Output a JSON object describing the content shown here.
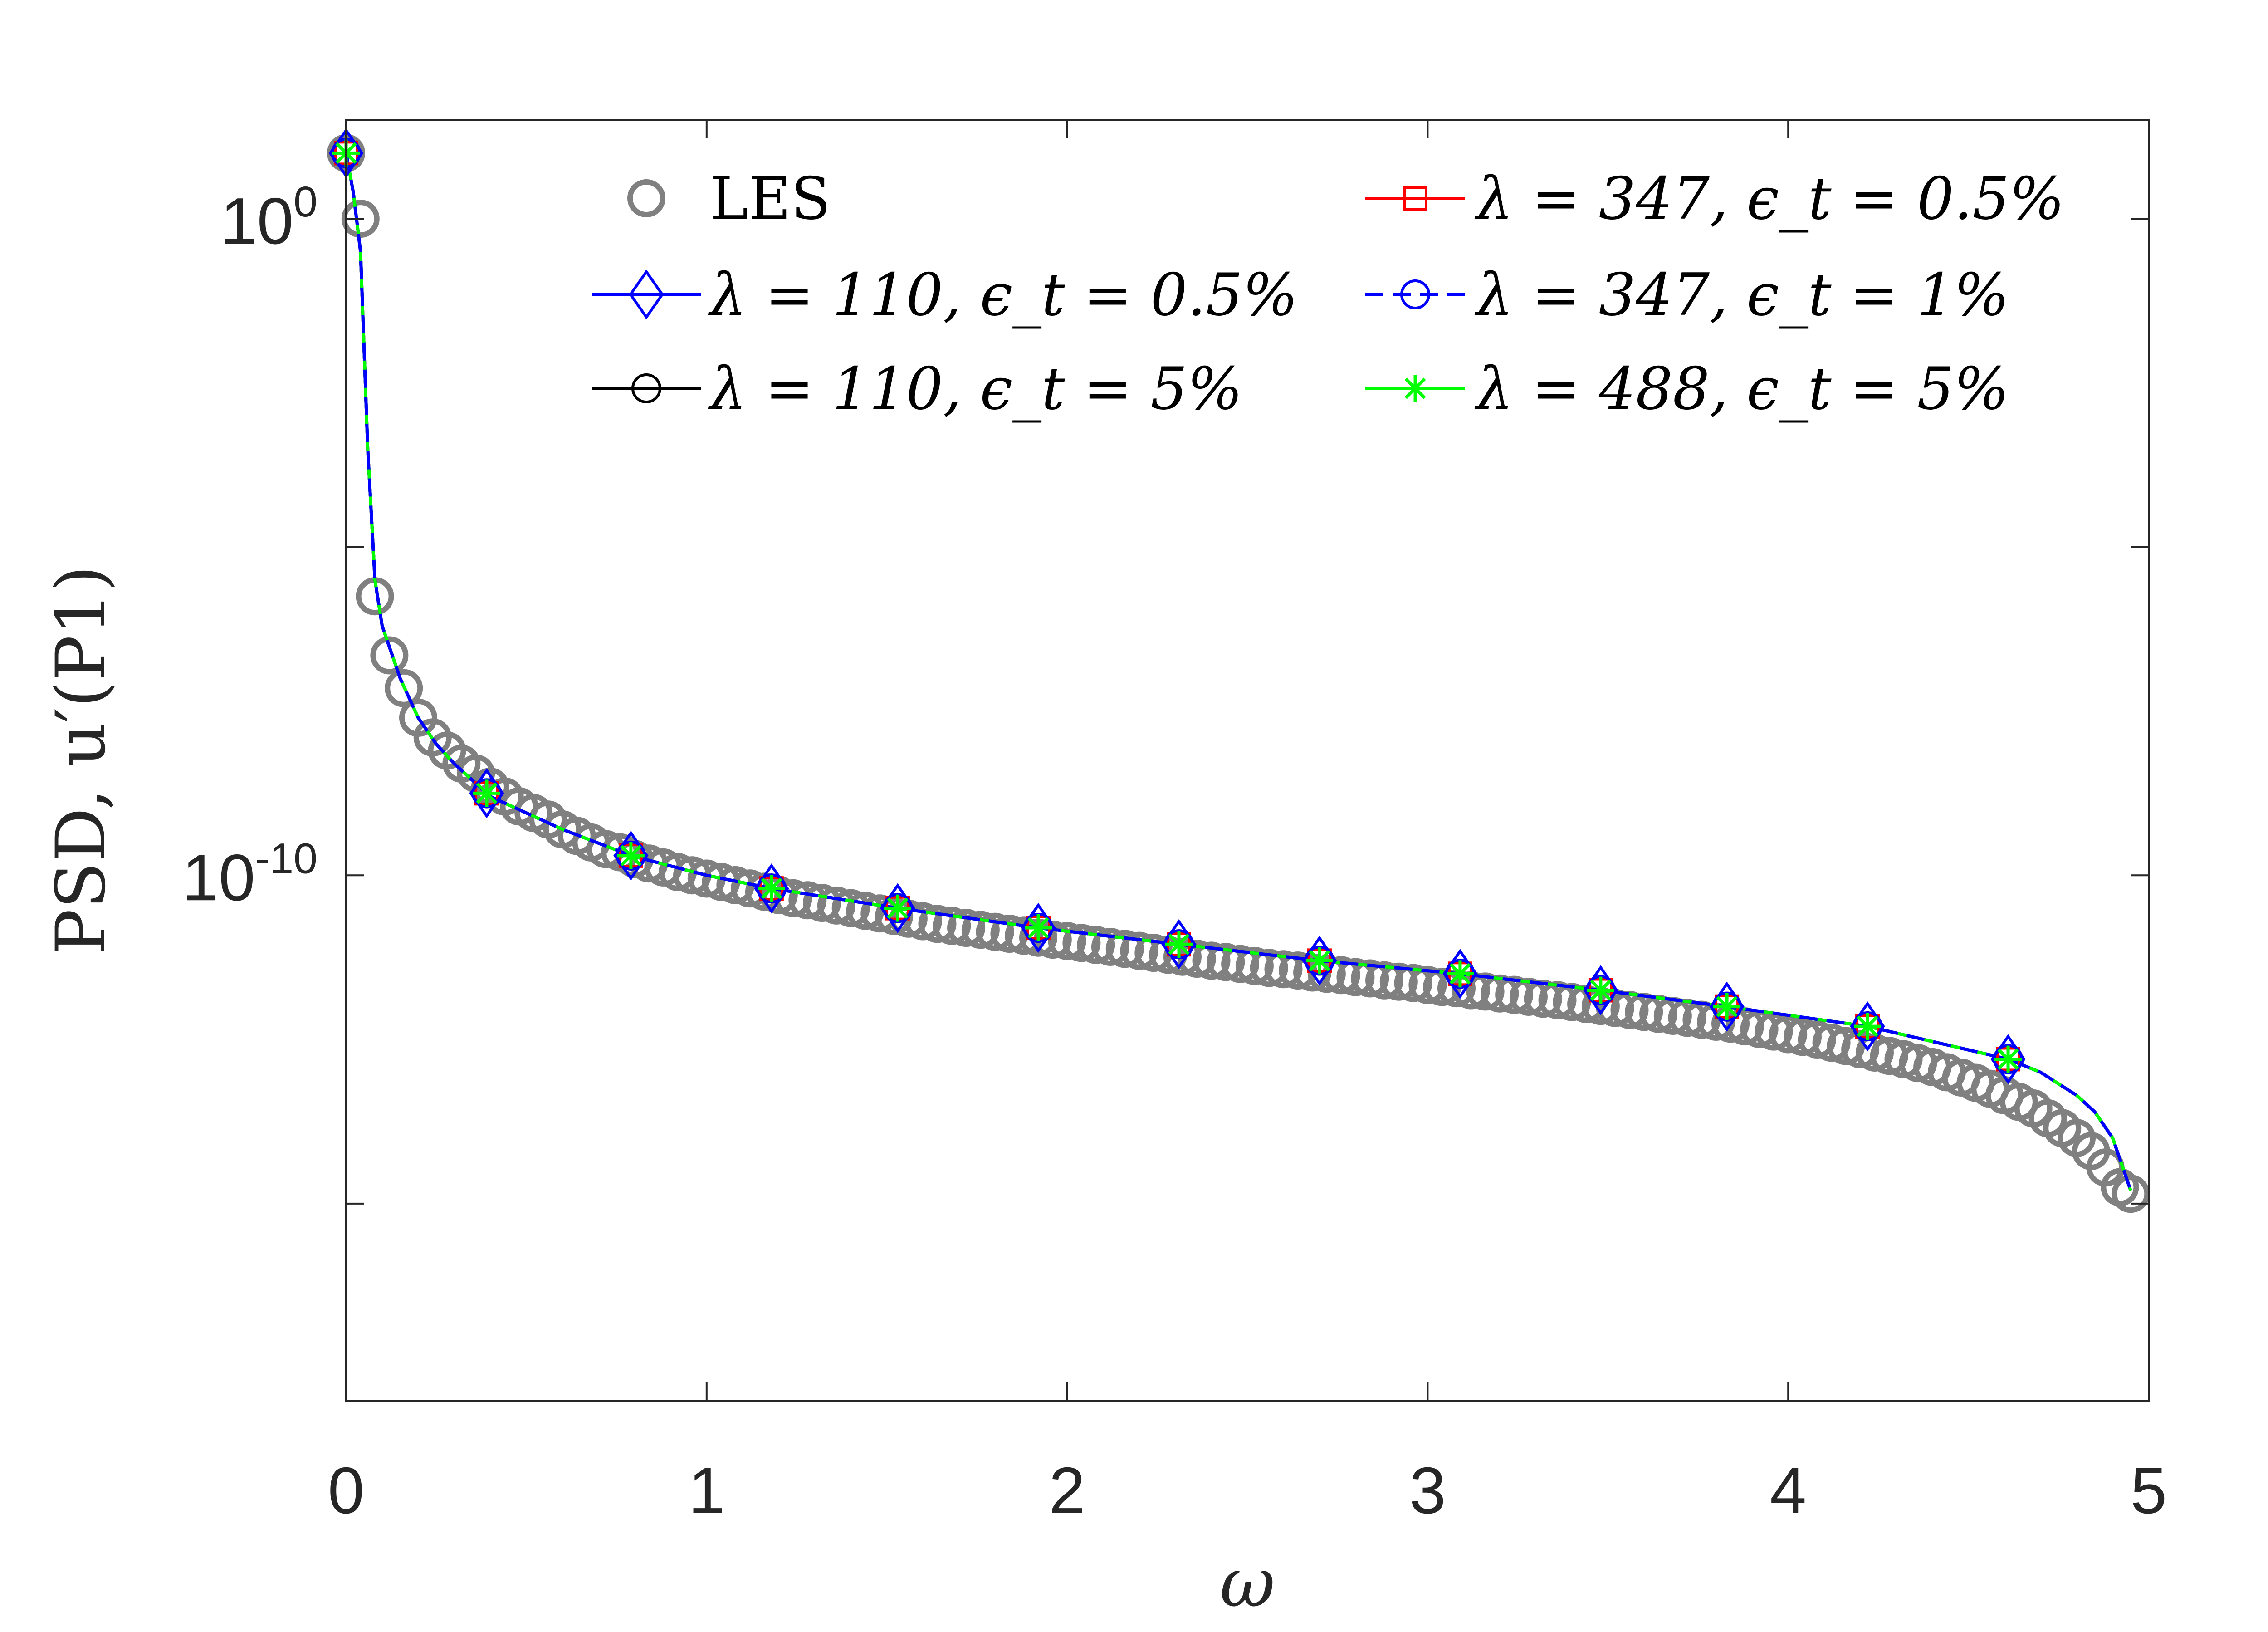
{
  "chart_data": {
    "type": "line",
    "xlabel": "ω",
    "ylabel": "PSD, u′(P1)",
    "xlim": [
      0,
      5
    ],
    "ylim_log10": [
      -18,
      1.5
    ],
    "y_scale": "log",
    "x_ticks": [
      "0",
      "1",
      "2",
      "3",
      "4",
      "5"
    ],
    "y_ticks": [
      {
        "base": "10",
        "exp": "0",
        "log10": 0
      },
      {
        "base": "10",
        "exp": "-10",
        "log10": -10
      }
    ],
    "grid": false,
    "legend": {
      "placement": "top",
      "columns": 2,
      "entries": [
        {
          "key": "les",
          "text": "LES"
        },
        {
          "key": "s110a",
          "text": "λ = 110,  ϵ_t = 0.5%"
        },
        {
          "key": "s110b",
          "text": "λ = 110,  ϵ_t = 5%"
        },
        {
          "key": "s347a",
          "text": "λ = 347,  ϵ_t = 0.5%"
        },
        {
          "key": "s347b",
          "text": "λ = 347,  ϵ_t = 1%"
        },
        {
          "key": "s488",
          "text": "λ = 488,  ϵ_t = 5%"
        }
      ]
    },
    "series": [
      {
        "key": "les",
        "name": "LES",
        "color": "#808080",
        "marker": "circle",
        "line": "none"
      },
      {
        "key": "s110a",
        "name": "λ = 110,  ϵ_t = 0.5%",
        "color": "#0000ff",
        "marker": "diamond",
        "line": "solid"
      },
      {
        "key": "s110b",
        "name": "λ = 110,  ϵ_t = 5%",
        "color": "#000000",
        "marker": "circle",
        "line": "solid"
      },
      {
        "key": "s347a",
        "name": "λ = 347,  ϵ_t = 0.5%",
        "color": "#ff0000",
        "marker": "square",
        "line": "solid"
      },
      {
        "key": "s347b",
        "name": "λ = 347,  ϵ_t = 1%",
        "color": "#0000ff",
        "marker": "circle",
        "line": "dashed"
      },
      {
        "key": "s488",
        "name": "λ = 488,  ϵ_t = 5%",
        "color": "#00ff00",
        "marker": "asterisk",
        "line": "solid"
      }
    ],
    "curve": {
      "x": [
        0,
        0.02,
        0.04,
        0.06,
        0.08,
        0.1,
        0.15,
        0.2,
        0.25,
        0.3,
        0.4,
        0.6,
        0.79,
        1.0,
        1.18,
        1.53,
        1.92,
        2.31,
        2.7,
        3.09,
        3.48,
        3.83,
        4.22,
        4.61,
        4.7,
        4.8,
        4.85,
        4.9,
        4.95
      ],
      "log10": [
        1.0,
        0.4,
        -0.5,
        -3.5,
        -5.5,
        -6.2,
        -7.0,
        -7.6,
        -8.0,
        -8.3,
        -8.8,
        -9.3,
        -9.7,
        -10.0,
        -10.2,
        -10.5,
        -10.8,
        -11.05,
        -11.3,
        -11.5,
        -11.75,
        -12.0,
        -12.3,
        -12.8,
        -13.0,
        -13.35,
        -13.6,
        -14.0,
        -14.8
      ]
    },
    "marker_x": [
      0,
      0.39,
      0.79,
      1.18,
      1.53,
      1.92,
      2.31,
      2.7,
      3.09,
      3.48,
      3.83,
      4.22,
      4.61
    ],
    "les_points": {
      "x": [
        0,
        0.04,
        0.08,
        0.12,
        0.16,
        0.2,
        0.24,
        0.28,
        0.32,
        0.36,
        0.4,
        0.44,
        0.48,
        0.52,
        0.56,
        0.6,
        0.64,
        0.68,
        0.72,
        0.76,
        0.8,
        0.84,
        0.88,
        0.92,
        0.96,
        1.0,
        1.04,
        1.08,
        1.12,
        1.16,
        1.2,
        1.24,
        1.28,
        1.32,
        1.36,
        1.4,
        1.44,
        1.48,
        1.52,
        1.56,
        1.6,
        1.64,
        1.68,
        1.72,
        1.76,
        1.8,
        1.84,
        1.88,
        1.92,
        1.96,
        2.0,
        2.04,
        2.08,
        2.12,
        2.16,
        2.2,
        2.24,
        2.28,
        2.32,
        2.36,
        2.4,
        2.44,
        2.48,
        2.52,
        2.56,
        2.6,
        2.64,
        2.68,
        2.72,
        2.76,
        2.8,
        2.84,
        2.88,
        2.92,
        2.96,
        3.0,
        3.04,
        3.08,
        3.12,
        3.16,
        3.2,
        3.24,
        3.28,
        3.32,
        3.36,
        3.4,
        3.44,
        3.48,
        3.52,
        3.56,
        3.6,
        3.64,
        3.68,
        3.72,
        3.76,
        3.8,
        3.84,
        3.88,
        3.92,
        3.96,
        4.0,
        4.04,
        4.08,
        4.12,
        4.16,
        4.2,
        4.24,
        4.28,
        4.32,
        4.36,
        4.4,
        4.44,
        4.48,
        4.52,
        4.56,
        4.6,
        4.64,
        4.68,
        4.72,
        4.76,
        4.8,
        4.84,
        4.88,
        4.92,
        4.95
      ],
      "log10": [
        1.0,
        0.0,
        -5.75,
        -6.65,
        -7.15,
        -7.6,
        -7.9,
        -8.1,
        -8.3,
        -8.45,
        -8.65,
        -8.8,
        -8.95,
        -9.05,
        -9.15,
        -9.3,
        -9.4,
        -9.5,
        -9.6,
        -9.65,
        -9.75,
        -9.82,
        -9.88,
        -9.95,
        -10.0,
        -10.05,
        -10.1,
        -10.15,
        -10.2,
        -10.25,
        -10.3,
        -10.35,
        -10.38,
        -10.42,
        -10.46,
        -10.5,
        -10.54,
        -10.58,
        -10.62,
        -10.66,
        -10.7,
        -10.74,
        -10.77,
        -10.8,
        -10.83,
        -10.86,
        -10.89,
        -10.92,
        -10.95,
        -10.98,
        -11.0,
        -11.03,
        -11.06,
        -11.09,
        -11.12,
        -11.15,
        -11.18,
        -11.21,
        -11.24,
        -11.27,
        -11.3,
        -11.32,
        -11.35,
        -11.38,
        -11.41,
        -11.43,
        -11.45,
        -11.48,
        -11.5,
        -11.52,
        -11.55,
        -11.57,
        -11.6,
        -11.62,
        -11.64,
        -11.67,
        -11.7,
        -11.72,
        -11.75,
        -11.77,
        -11.8,
        -11.82,
        -11.85,
        -11.88,
        -11.9,
        -11.93,
        -11.96,
        -11.99,
        -12.02,
        -12.05,
        -12.08,
        -12.11,
        -12.14,
        -12.17,
        -12.2,
        -12.23,
        -12.26,
        -12.3,
        -12.34,
        -12.38,
        -12.42,
        -12.46,
        -12.5,
        -12.55,
        -12.6,
        -12.65,
        -12.7,
        -12.75,
        -12.8,
        -12.86,
        -12.92,
        -13.0,
        -13.08,
        -13.16,
        -13.25,
        -13.35,
        -13.45,
        -13.55,
        -13.7,
        -13.85,
        -14.0,
        -14.2,
        -14.45,
        -14.75,
        -14.85
      ]
    }
  }
}
